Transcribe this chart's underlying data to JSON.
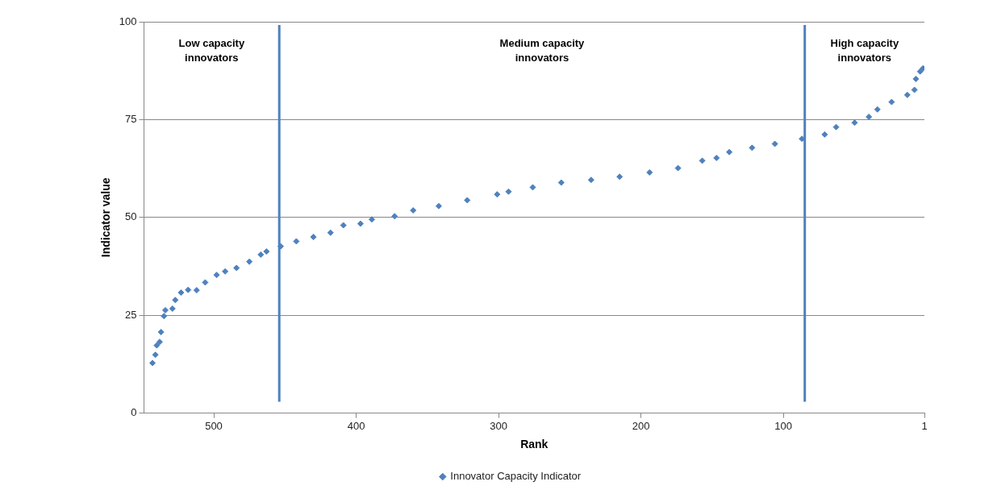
{
  "chart_data": {
    "type": "scatter",
    "xlabel": "Rank",
    "ylabel": "Indicator value",
    "xlim": [
      549,
      1
    ],
    "xticks": [
      500,
      400,
      300,
      200,
      100,
      1
    ],
    "ylim": [
      0,
      100
    ],
    "yticks": [
      0,
      25,
      50,
      75,
      100
    ],
    "grid": "y",
    "legend": "bottom",
    "marker": "diamond",
    "series": [
      {
        "name": "Innovator Capacity Indicator",
        "color": "#4f81bd",
        "x": [
          543,
          541,
          540,
          538,
          537,
          535,
          534,
          529,
          527,
          523,
          518,
          512,
          506,
          498,
          492,
          484,
          475,
          467,
          463,
          453,
          442,
          430,
          418,
          409,
          397,
          389,
          373,
          360,
          342,
          322,
          301,
          293,
          276,
          256,
          235,
          215,
          194,
          174,
          157,
          147,
          138,
          122,
          106,
          87,
          71,
          63,
          50,
          40,
          34,
          24,
          13,
          8,
          7,
          4,
          2
        ],
        "values": [
          12.8,
          14.9,
          17.3,
          18.2,
          20.7,
          24.8,
          26.3,
          26.7,
          28.9,
          30.8,
          31.5,
          31.4,
          33.4,
          35.3,
          36.2,
          37.1,
          38.7,
          40.5,
          41.3,
          42.6,
          43.9,
          45.0,
          46.1,
          48.0,
          48.4,
          49.5,
          50.3,
          51.8,
          52.9,
          54.4,
          55.9,
          56.6,
          57.7,
          58.9,
          59.6,
          60.4,
          61.5,
          62.6,
          64.5,
          65.2,
          66.7,
          67.8,
          68.8,
          70.1,
          71.2,
          73.1,
          74.2,
          75.7,
          77.6,
          79.5,
          81.3,
          82.6,
          85.4,
          87.3,
          88.1
        ]
      }
    ],
    "ref_lines": [
      {
        "axis": "x",
        "value": 454,
        "color": "#4f81bd"
      },
      {
        "axis": "x",
        "value": 85,
        "color": "#4f81bd"
      }
    ],
    "annotations": [
      "Low capacity innovators",
      "Medium capacity innovators",
      "High capacity innovators"
    ]
  }
}
